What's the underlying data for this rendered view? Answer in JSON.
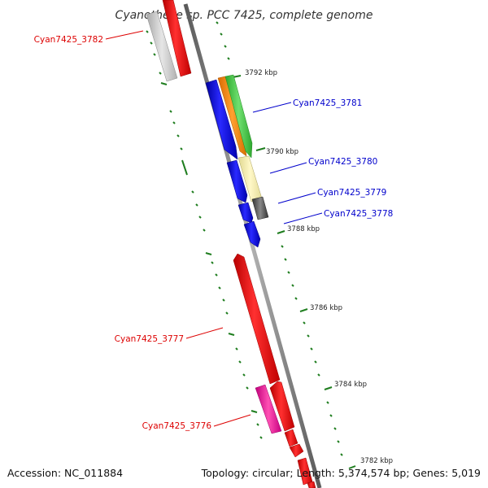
{
  "title": "Cyanothece sp. PCC 7425, complete genome",
  "accession": "Accession: NC_011884",
  "summary": "Topology: circular; Length: 5,374,574 bp; Genes: 5,019",
  "colors": {
    "reverse_label": "#dd0000",
    "forward_label": "#0000cc",
    "tick": "#1e7d1e",
    "backbone": "#808080"
  },
  "ticks": [
    "3792 kbp",
    "3790 kbp",
    "3788 kbp",
    "3786 kbp",
    "3784 kbp",
    "3782 kbp"
  ],
  "gene_labels": [
    {
      "name": "Cyan7425_3782",
      "strand": "reverse"
    },
    {
      "name": "Cyan7425_3781",
      "strand": "forward"
    },
    {
      "name": "Cyan7425_3780",
      "strand": "forward"
    },
    {
      "name": "Cyan7425_3779",
      "strand": "forward"
    },
    {
      "name": "Cyan7425_3778",
      "strand": "forward"
    },
    {
      "name": "Cyan7425_3777",
      "strand": "reverse"
    },
    {
      "name": "Cyan7425_3776",
      "strand": "reverse"
    }
  ]
}
